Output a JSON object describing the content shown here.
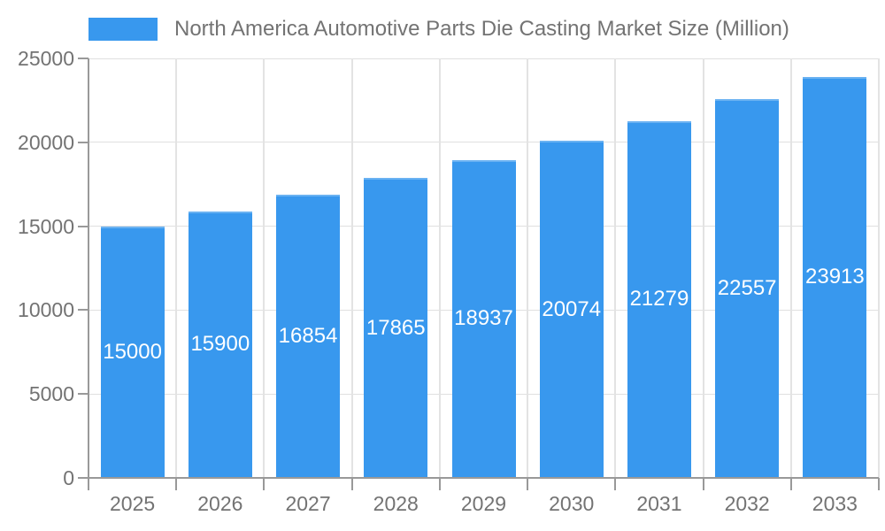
{
  "chart_data": {
    "type": "bar",
    "legend": "North America Automotive Parts Die Casting Market Size (Million)",
    "categories": [
      "2025",
      "2026",
      "2027",
      "2028",
      "2029",
      "2030",
      "2031",
      "2032",
      "2033"
    ],
    "values": [
      15000,
      15900,
      16854,
      17865,
      18937,
      20074,
      21279,
      22557,
      23913
    ],
    "title": "",
    "xlabel": "",
    "ylabel": "",
    "ylim": [
      0,
      25000
    ],
    "y_ticks": [
      0,
      5000,
      10000,
      15000,
      20000,
      25000
    ],
    "grid": "on",
    "legend_position": "top-left",
    "bar_color": "#3898EE",
    "bar_label_color": "#ffffff",
    "axis_color": "#999999",
    "grid_color": "#e0e0e0",
    "text_color": "#737373",
    "background_color": "#ffffff"
  }
}
